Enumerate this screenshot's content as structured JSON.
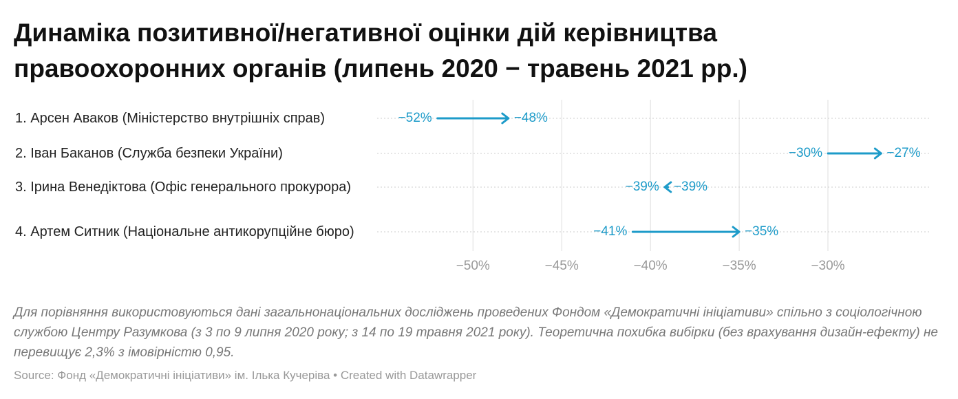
{
  "chart_data": {
    "type": "arrow",
    "title": "Динаміка позитивної/негативної оцінки дій керівництва правоохоронних органів (липень 2020 − травень 2021 рр.)",
    "categories": [
      "1. Арсен Аваков (Міністерство внутрішніх справ)",
      "2. Іван Баканов (Служба безпеки України)",
      "3. Ірина Венедіктова (Офіс генерального прокурора)",
      "4. Артем Ситник (Національне антикорупційне бюро)"
    ],
    "series": [
      {
        "values": [
          -52,
          -30,
          -39,
          -41
        ],
        "value_labels": [
          "−52%",
          "−30%",
          "−39%",
          "−41%"
        ]
      },
      {
        "values": [
          -48,
          -27,
          -39.2,
          -35
        ],
        "value_labels": [
          "−48%",
          "−27%",
          "−39%",
          "−35%"
        ]
      }
    ],
    "color": "#1d9bc9",
    "xlim": [
      -55.4,
      -24.3
    ],
    "xticks": [
      {
        "value": -50,
        "label": "−50%"
      },
      {
        "value": -45,
        "label": "−45%"
      },
      {
        "value": -40,
        "label": "−40%"
      },
      {
        "value": -35,
        "label": "−35%"
      },
      {
        "value": -30,
        "label": "−30%"
      }
    ],
    "grid": true,
    "notes": "Для порівняння використовуються дані загальнонаціональних досліджень проведених Фондом «Демократичні ініціативи» спільно з соціологічною службою Центру Разумкова (з 3 по 9 липня 2020 року; з 14 по 19 травня 2021 року). Теоретична похибка вибірки (без врахування дизайн-ефекту) не перевищує 2,3% з імовірністю 0,95.",
    "source": "Source: Фонд «Демократичні ініціативи» ім. Ілька Кучеріва • Created with Datawrapper"
  }
}
